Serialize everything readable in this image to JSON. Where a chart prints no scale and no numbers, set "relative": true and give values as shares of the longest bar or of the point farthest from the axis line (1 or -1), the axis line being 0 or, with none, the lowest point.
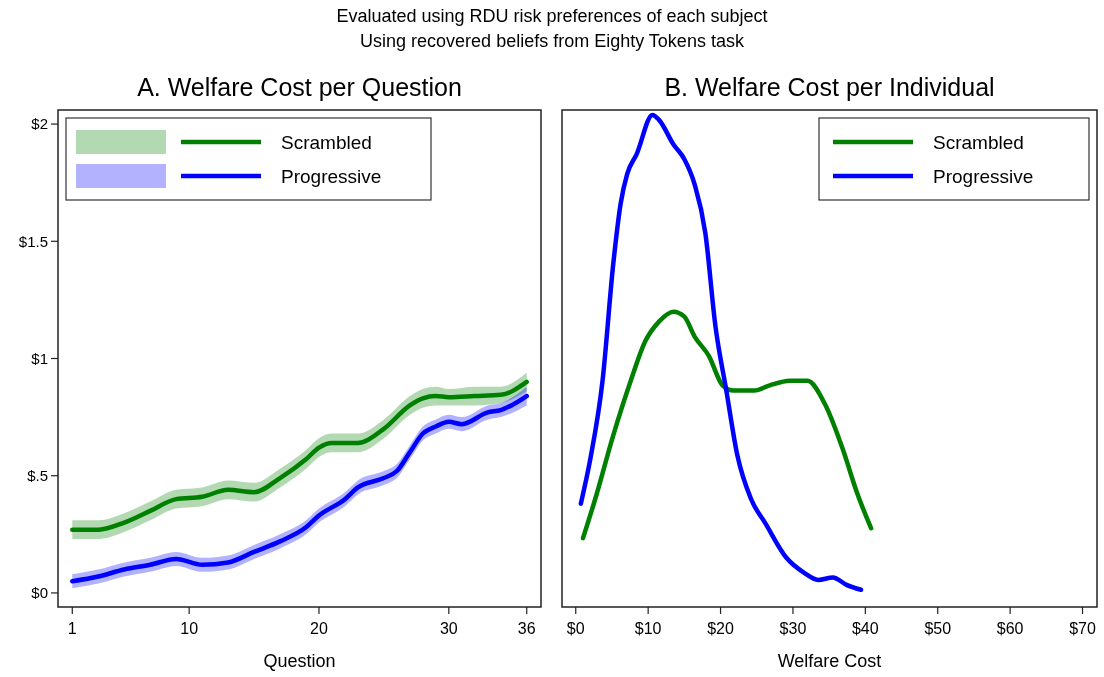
{
  "chart_data": [
    {
      "type": "line",
      "title": "A. Welfare Cost per Question",
      "subtitle": "Evaluated using RDU risk preferences of each subject\nUsing recovered beliefs from Eighty Tokens task",
      "xlabel": "Question",
      "xlim": [
        -0.1,
        37.1
      ],
      "xticks": [
        1,
        10,
        20,
        30,
        36
      ],
      "ylim": [
        -0.06,
        2.06
      ],
      "yticks": [
        {
          "value": 0,
          "label": "$0"
        },
        {
          "value": 0.5,
          "label": "$.5"
        },
        {
          "value": 1,
          "label": "$1"
        },
        {
          "value": 1.5,
          "label": "$1.5"
        },
        {
          "value": 2,
          "label": "$2"
        }
      ],
      "grid": false,
      "legend": "top left",
      "line_style": "solid",
      "series": [
        {
          "name": "Scrambled",
          "color": "#008000",
          "x": [
            1,
            3,
            5,
            7,
            9,
            11,
            13,
            15,
            17,
            19,
            20,
            21,
            23,
            25,
            27,
            28,
            29,
            30,
            32,
            34,
            36
          ],
          "values": [
            0.27,
            0.27,
            0.3,
            0.35,
            0.4,
            0.41,
            0.44,
            0.43,
            0.49,
            0.57,
            0.62,
            0.64,
            0.64,
            0.7,
            0.8,
            0.83,
            0.84,
            0.835,
            0.84,
            0.845,
            0.9
          ],
          "lower": [
            0.23,
            0.23,
            0.26,
            0.31,
            0.36,
            0.37,
            0.4,
            0.39,
            0.45,
            0.53,
            0.58,
            0.6,
            0.6,
            0.66,
            0.76,
            0.79,
            0.8,
            0.8,
            0.8,
            0.81,
            0.86
          ],
          "upper": [
            0.31,
            0.31,
            0.34,
            0.39,
            0.44,
            0.45,
            0.48,
            0.47,
            0.53,
            0.61,
            0.66,
            0.68,
            0.68,
            0.74,
            0.84,
            0.87,
            0.88,
            0.87,
            0.88,
            0.88,
            0.94
          ]
        },
        {
          "name": "Progressive",
          "color": "#0000ff",
          "x": [
            1,
            3,
            5,
            7,
            9,
            11,
            13,
            15,
            17,
            19,
            20,
            22,
            23,
            25,
            26,
            27,
            28,
            29,
            30,
            31,
            33,
            34,
            36
          ],
          "values": [
            0.05,
            0.07,
            0.1,
            0.12,
            0.145,
            0.12,
            0.13,
            0.175,
            0.22,
            0.28,
            0.33,
            0.4,
            0.45,
            0.49,
            0.52,
            0.6,
            0.68,
            0.71,
            0.73,
            0.72,
            0.77,
            0.78,
            0.84
          ],
          "lower": [
            0.02,
            0.04,
            0.07,
            0.09,
            0.115,
            0.09,
            0.1,
            0.145,
            0.19,
            0.25,
            0.3,
            0.37,
            0.42,
            0.46,
            0.49,
            0.57,
            0.65,
            0.68,
            0.7,
            0.69,
            0.74,
            0.75,
            0.8
          ],
          "upper": [
            0.08,
            0.1,
            0.13,
            0.15,
            0.175,
            0.15,
            0.16,
            0.205,
            0.25,
            0.31,
            0.36,
            0.43,
            0.48,
            0.52,
            0.55,
            0.63,
            0.71,
            0.74,
            0.76,
            0.75,
            0.8,
            0.81,
            0.88
          ]
        }
      ]
    },
    {
      "type": "line",
      "title": "B. Welfare Cost per Individual",
      "xlabel": "Welfare Cost",
      "relative": true,
      "tick_labels": "x",
      "xlim": [
        -1.9,
        72
      ],
      "xticks": [
        {
          "value": 0,
          "label": "$0"
        },
        {
          "value": 10,
          "label": "$10"
        },
        {
          "value": 20,
          "label": "$20"
        },
        {
          "value": 30,
          "label": "$30"
        },
        {
          "value": 40,
          "label": "$40"
        },
        {
          "value": 50,
          "label": "$50"
        },
        {
          "value": 60,
          "label": "$60"
        },
        {
          "value": 70,
          "label": "$70"
        }
      ],
      "grid": false,
      "legend": "top right",
      "line_style": "solid",
      "series": [
        {
          "name": "Scrambled",
          "color": "#008000",
          "x": [
            1.0,
            2.7,
            5.2,
            7.6,
            9.6,
            11.5,
            13.5,
            15.0,
            16.4,
            18.4,
            20.3,
            21.8,
            24.7,
            26.7,
            29.6,
            32.0,
            34.5,
            36.9,
            38.9,
            40.8
          ],
          "values": [
            0.14,
            0.22,
            0.35,
            0.46,
            0.54,
            0.58,
            0.6,
            0.59,
            0.55,
            0.51,
            0.45,
            0.44,
            0.44,
            0.45,
            0.46,
            0.46,
            0.41,
            0.32,
            0.23,
            0.16
          ]
        },
        {
          "name": "Progressive",
          "color": "#0000ff",
          "x": [
            0.7,
            2.0,
            3.7,
            5.2,
            6.2,
            7.1,
            8.4,
            10.6,
            11.5,
            13.5,
            15.0,
            16.4,
            17.9,
            19.3,
            20.8,
            22.3,
            24.2,
            26.2,
            29.1,
            31.5,
            33.5,
            35.5,
            37.4,
            39.4
          ],
          "values": [
            0.21,
            0.3,
            0.46,
            0.7,
            0.82,
            0.88,
            0.92,
            1.0,
            0.99,
            0.94,
            0.91,
            0.86,
            0.76,
            0.57,
            0.44,
            0.31,
            0.22,
            0.17,
            0.1,
            0.07,
            0.055,
            0.06,
            0.045,
            0.035
          ]
        }
      ]
    }
  ]
}
